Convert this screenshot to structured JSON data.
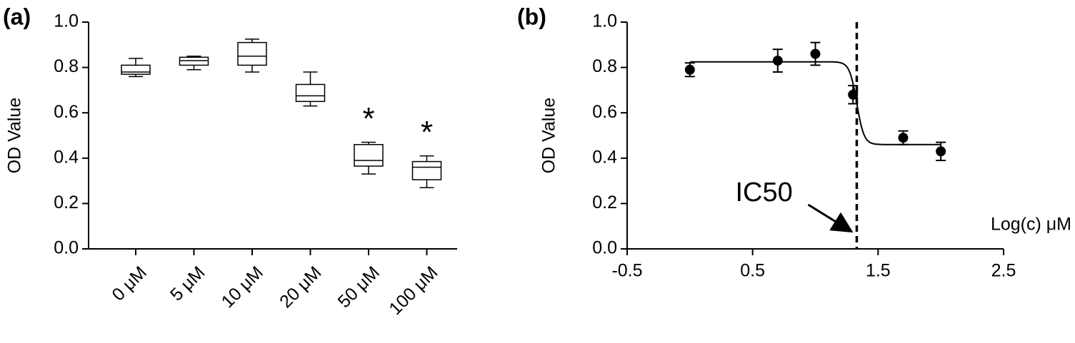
{
  "chart_data": [
    {
      "type": "box",
      "panel_label": "(a)",
      "ylabel": "OD Value",
      "categories": [
        "0 μM",
        "5 μM",
        "10 μM",
        "20 μM",
        "50 μM",
        "100 μM"
      ],
      "boxes": [
        {
          "min": 0.76,
          "q1": 0.77,
          "median": 0.78,
          "q3": 0.81,
          "max": 0.84
        },
        {
          "min": 0.79,
          "q1": 0.81,
          "median": 0.83,
          "q3": 0.845,
          "max": 0.85
        },
        {
          "min": 0.78,
          "q1": 0.81,
          "median": 0.85,
          "q3": 0.91,
          "max": 0.925
        },
        {
          "min": 0.63,
          "q1": 0.65,
          "median": 0.675,
          "q3": 0.725,
          "max": 0.78
        },
        {
          "min": 0.33,
          "q1": 0.365,
          "median": 0.39,
          "q3": 0.46,
          "max": 0.47
        },
        {
          "min": 0.27,
          "q1": 0.305,
          "median": 0.36,
          "q3": 0.385,
          "max": 0.41
        }
      ],
      "annotations": [
        null,
        null,
        null,
        null,
        "*",
        "*"
      ],
      "color": "#000000",
      "ylim": [
        0,
        1
      ],
      "yticks": [
        {
          "value": 0,
          "label": "0.0"
        },
        0.2,
        0.4,
        0.6,
        0.8,
        {
          "value": 1,
          "label": "1.0"
        }
      ]
    },
    {
      "type": "scatter",
      "panel_label": "(b)",
      "ylabel": "OD Value",
      "xlabel": "Log(c) μM",
      "x": [
        0,
        0.7,
        1,
        1.3,
        1.7,
        2
      ],
      "y": [
        0.79,
        0.83,
        0.86,
        0.68,
        0.49,
        0.43
      ],
      "errors": [
        0.03,
        0.05,
        0.05,
        0.04,
        0.03,
        0.04
      ],
      "fit": {
        "top": 0.825,
        "bottom": 0.46,
        "log_ic50": 1.33,
        "hill": 15,
        "xrange": [
          0,
          2
        ]
      },
      "ic50_label": "IC50",
      "color": "#000000",
      "xlim": [
        -0.5,
        2.5
      ],
      "xticks": [
        -0.5,
        0.5,
        1.5,
        2.5
      ],
      "ylim": [
        0,
        1
      ],
      "yticks": [
        {
          "value": 0,
          "label": "0.0"
        },
        0.2,
        0.4,
        0.6,
        0.8,
        {
          "value": 1,
          "label": "1.0"
        }
      ]
    }
  ]
}
